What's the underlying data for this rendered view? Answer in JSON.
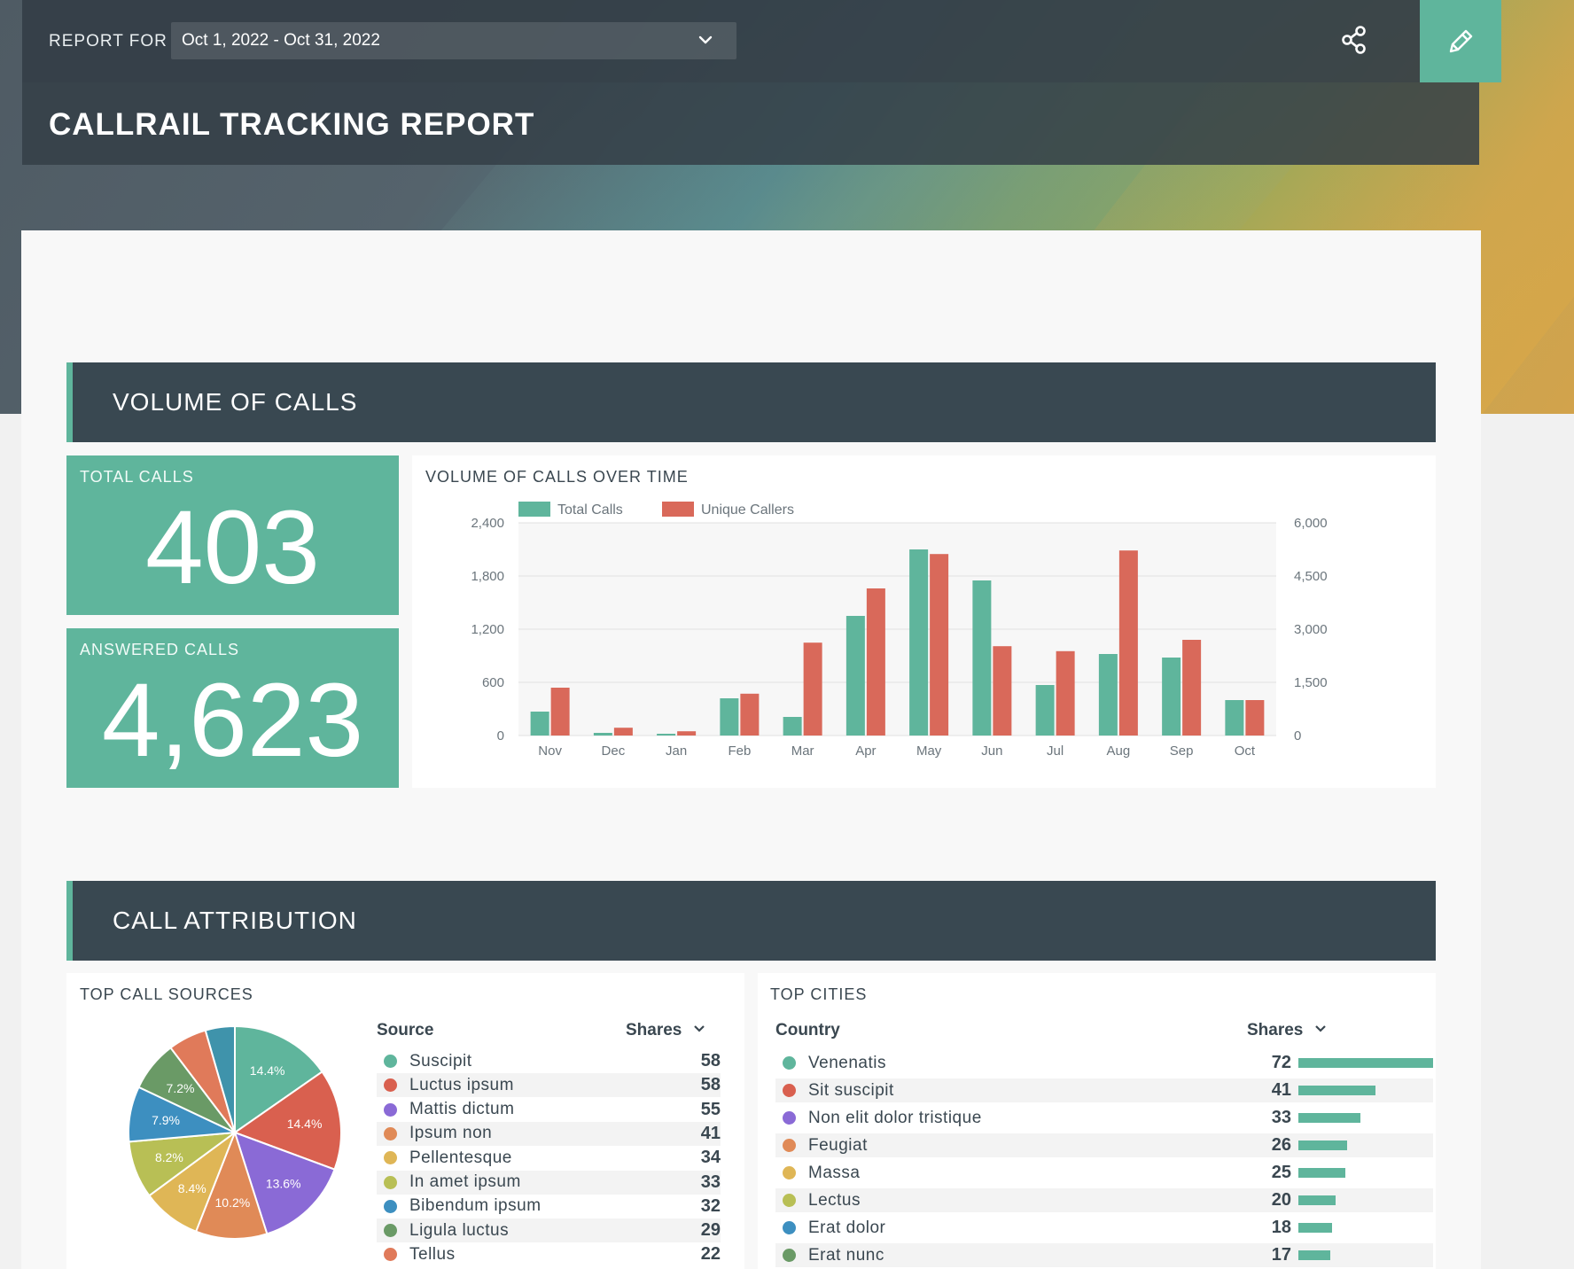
{
  "header": {
    "report_for_label": "REPORT FOR",
    "date_range": "Oct 1, 2022 - Oct 31, 2022",
    "title": "CALLRAIL TRACKING REPORT",
    "accent_color": "#5fb59c",
    "share_icon": "share-icon",
    "edit_icon": "pencil-icon"
  },
  "sections": {
    "volume": "VOLUME OF CALLS",
    "attribution": "CALL ATTRIBUTION"
  },
  "kpis": {
    "total_calls": {
      "label": "TOTAL CALLS",
      "value": "403"
    },
    "answered_calls": {
      "label": "ANSWERED CALLS",
      "value": "4,623"
    }
  },
  "chart_data": {
    "type": "bar",
    "title": "VOLUME OF CALLS OVER TIME",
    "categories": [
      "Nov",
      "Dec",
      "Jan",
      "Feb",
      "Mar",
      "Apr",
      "May",
      "Jun",
      "Jul",
      "Aug",
      "Sep",
      "Oct"
    ],
    "series": [
      {
        "name": "Total Calls",
        "color": "#5fb59c",
        "axis": "left",
        "values": [
          270,
          30,
          20,
          420,
          210,
          1350,
          2100,
          1750,
          570,
          920,
          880,
          400
        ]
      },
      {
        "name": "Unique Callers",
        "color": "#d9695a",
        "axis": "right",
        "values": [
          1350,
          220,
          120,
          1180,
          2620,
          4150,
          5120,
          2520,
          2380,
          5220,
          2700,
          1000
        ]
      }
    ],
    "y_left": {
      "min": 0,
      "max": 2400,
      "ticks": [
        "0",
        "600",
        "1,200",
        "1,800",
        "2,400"
      ]
    },
    "y_right": {
      "min": 0,
      "max": 6000,
      "ticks": [
        "0",
        "1,500",
        "3,000",
        "4,500",
        "6,000"
      ]
    },
    "legend_position": "top-left"
  },
  "top_call_sources": {
    "title": "TOP CALL SOURCES",
    "col_source": "Source",
    "col_shares": "Shares",
    "rows": [
      {
        "name": "Suscipit",
        "value": 58,
        "color": "#5fb59c"
      },
      {
        "name": "Luctus ipsum",
        "value": 58,
        "color": "#d9604f"
      },
      {
        "name": "Mattis dictum",
        "value": 55,
        "color": "#8a6ad6"
      },
      {
        "name": "Ipsum non",
        "value": 41,
        "color": "#e08a57"
      },
      {
        "name": "Pellentesque",
        "value": 34,
        "color": "#dfb656"
      },
      {
        "name": "In amet ipsum",
        "value": 33,
        "color": "#b8bf55"
      },
      {
        "name": "Bibendum ipsum",
        "value": 32,
        "color": "#3d8fc0"
      },
      {
        "name": "Ligula luctus",
        "value": 29,
        "color": "#6a9a66"
      },
      {
        "name": "Tellus",
        "value": 22,
        "color": "#e07a5a"
      }
    ],
    "pie": [
      {
        "label": "14.4%",
        "pct": 14.4,
        "color": "#5fb59c"
      },
      {
        "label": "14.4%",
        "pct": 14.4,
        "color": "#d9604f"
      },
      {
        "label": "13.6%",
        "pct": 13.6,
        "color": "#8a6ad6"
      },
      {
        "label": "10.2%",
        "pct": 10.2,
        "color": "#e08a57"
      },
      {
        "label": "8.4%",
        "pct": 8.4,
        "color": "#dfb656"
      },
      {
        "label": "8.2%",
        "pct": 8.2,
        "color": "#b8bf55"
      },
      {
        "label": "7.9%",
        "pct": 7.9,
        "color": "#3d8fc0"
      },
      {
        "label": "7.2%",
        "pct": 7.2,
        "color": "#6a9a66"
      },
      {
        "label": "",
        "pct": 5.5,
        "color": "#e07a5a"
      },
      {
        "label": "",
        "pct": 4.2,
        "color": "#3f93ab"
      }
    ]
  },
  "top_cities": {
    "title": "TOP CITIES",
    "col_country": "Country",
    "col_shares": "Shares",
    "rows": [
      {
        "name": "Venenatis",
        "value": 72,
        "color": "#5fb59c"
      },
      {
        "name": "Sit suscipit",
        "value": 41,
        "color": "#d9604f"
      },
      {
        "name": "Non elit dolor tristique",
        "value": 33,
        "color": "#8a6ad6"
      },
      {
        "name": "Feugiat",
        "value": 26,
        "color": "#e08a57"
      },
      {
        "name": "Massa",
        "value": 25,
        "color": "#dfb656"
      },
      {
        "name": "Lectus",
        "value": 20,
        "color": "#b8bf55"
      },
      {
        "name": "Erat dolor",
        "value": 18,
        "color": "#3d8fc0"
      },
      {
        "name": "Erat nunc",
        "value": 17,
        "color": "#6a9a66"
      }
    ]
  }
}
